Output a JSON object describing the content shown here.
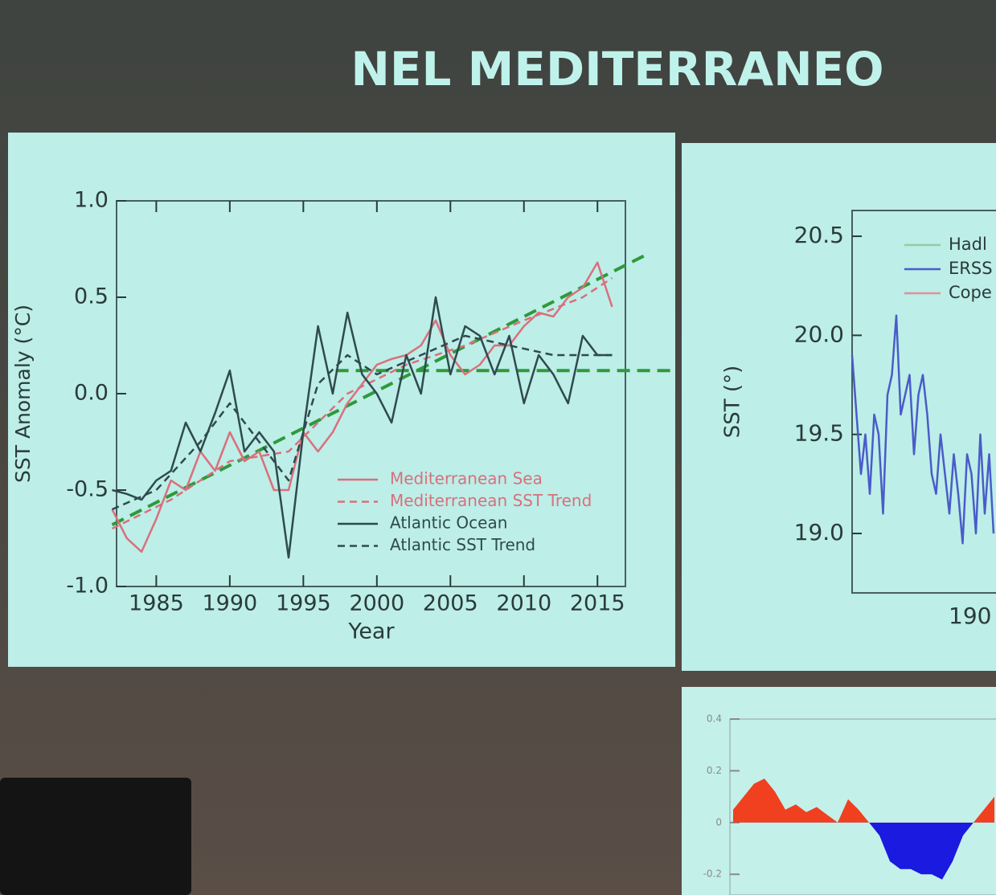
{
  "title": "NEL MEDITERRANEO",
  "chart_data": [
    {
      "type": "line",
      "ylabel": "SST Anomaly (°C)",
      "xlabel": "Year",
      "xlim": [
        1982.3,
        2016.9
      ],
      "ylim": [
        -1,
        1
      ],
      "xticks": [
        1985,
        1990,
        1995,
        2000,
        2005,
        2010,
        2015
      ],
      "yticks": [
        {
          "value": -1,
          "label": "-1.0"
        },
        -0.5,
        {
          "value": 0,
          "label": "0.0"
        },
        0.5,
        {
          "value": 1,
          "label": "1.0"
        }
      ],
      "series": [
        {
          "name": "Mediterranean Sea",
          "color": "#d9707c",
          "dash": false,
          "x": [
            1982,
            1983,
            1984,
            1985,
            1986,
            1987,
            1988,
            1989,
            1990,
            1991,
            1992,
            1993,
            1994,
            1995,
            1996,
            1997,
            1998,
            1999,
            2000,
            2001,
            2002,
            2003,
            2004,
            2005,
            2006,
            2007,
            2008,
            2009,
            2010,
            2011,
            2012,
            2013,
            2014,
            2015,
            2016
          ],
          "values": [
            -0.6,
            -0.75,
            -0.82,
            -0.65,
            -0.45,
            -0.5,
            -0.3,
            -0.4,
            -0.2,
            -0.35,
            -0.3,
            -0.5,
            -0.5,
            -0.2,
            -0.3,
            -0.2,
            -0.05,
            0.05,
            0.15,
            0.18,
            0.2,
            0.25,
            0.38,
            0.2,
            0.1,
            0.15,
            0.25,
            0.25,
            0.35,
            0.42,
            0.4,
            0.5,
            0.55,
            0.68,
            0.45
          ]
        },
        {
          "name": "Mediterranean SST Trend",
          "color": "#d9707c",
          "dash": true,
          "x": [
            1982,
            1986,
            1990,
            1994,
            1998,
            2002,
            2006,
            2010,
            2014,
            2016
          ],
          "values": [
            -0.7,
            -0.55,
            -0.35,
            -0.3,
            0.0,
            0.15,
            0.25,
            0.38,
            0.5,
            0.6
          ]
        },
        {
          "name": "Atlantic Ocean",
          "color": "#2f4a4e",
          "dash": false,
          "x": [
            1982,
            1983,
            1984,
            1985,
            1986,
            1987,
            1988,
            1989,
            1990,
            1991,
            1992,
            1993,
            1994,
            1995,
            1996,
            1997,
            1998,
            1999,
            2000,
            2001,
            2002,
            2003,
            2004,
            2005,
            2006,
            2007,
            2008,
            2009,
            2010,
            2011,
            2012,
            2013,
            2014,
            2015,
            2016
          ],
          "values": [
            -0.5,
            -0.52,
            -0.55,
            -0.45,
            -0.4,
            -0.15,
            -0.3,
            -0.1,
            0.12,
            -0.3,
            -0.2,
            -0.3,
            -0.85,
            -0.2,
            0.35,
            0.0,
            0.42,
            0.1,
            0.0,
            -0.15,
            0.2,
            0.0,
            0.5,
            0.1,
            0.35,
            0.3,
            0.1,
            0.3,
            -0.05,
            0.2,
            0.1,
            -0.05,
            0.3,
            0.2,
            0.2
          ]
        },
        {
          "name": "Atlantic SST Trend",
          "color": "#2f4a4e",
          "dash": true,
          "x": [
            1982,
            1985,
            1988,
            1990,
            1992,
            1994,
            1996,
            1998,
            2000,
            2003,
            2006,
            2009,
            2012,
            2016
          ],
          "values": [
            -0.6,
            -0.5,
            -0.25,
            -0.05,
            -0.25,
            -0.45,
            0.05,
            0.2,
            0.1,
            0.2,
            0.3,
            0.25,
            0.2,
            0.2
          ]
        }
      ],
      "trend_lines": [
        {
          "color": "#2e9a3a",
          "x": [
            1982,
            2018.3
          ],
          "values": [
            -0.68,
            0.72
          ]
        },
        {
          "color": "#2e9a3a",
          "x": [
            1997.2,
            2020
          ],
          "values": [
            0.12,
            0.12
          ]
        }
      ]
    },
    {
      "type": "line",
      "ylabel": "SST (°)",
      "x_tick_label": "190",
      "ylim": [
        18.7,
        20.63
      ],
      "yticks": [
        {
          "value": 19,
          "label": "19.0"
        },
        19.5,
        {
          "value": 20,
          "label": "20.0"
        },
        20.5
      ],
      "categories": [
        null,
        null,
        null,
        null,
        null,
        null,
        null,
        null,
        null,
        null,
        null,
        null,
        null,
        null,
        null,
        null,
        null,
        null,
        null,
        null,
        null,
        null,
        null,
        null,
        null,
        null,
        null,
        null,
        null,
        null,
        null,
        null,
        null
      ],
      "legend_names": [
        "Hadl",
        "ERSS",
        "Cope"
      ],
      "legend_colors": [
        "#8fd0a0",
        "#4a5cc8",
        "#e0909a"
      ],
      "series": [
        {
          "color": "#4a5cc8",
          "values": [
            19.9,
            19.6,
            19.3,
            19.5,
            19.2,
            19.6,
            19.5,
            19.1,
            19.7,
            19.8,
            20.1,
            19.6,
            19.7,
            19.8,
            19.4,
            19.7,
            19.8,
            19.6,
            19.3,
            19.2,
            19.5,
            19.3,
            19.1,
            19.4,
            19.2,
            18.95,
            19.4,
            19.3,
            19.0,
            19.5,
            19.1,
            19.4,
            19.0
          ]
        }
      ]
    },
    {
      "type": "area",
      "ylim": [
        -0.28,
        0.4
      ],
      "yticks": [
        -0.2,
        0,
        0.2,
        0.4
      ],
      "categories": [
        null,
        null,
        null,
        null,
        null,
        null,
        null,
        null,
        null,
        null,
        null,
        null,
        null,
        null,
        null,
        null,
        null,
        null,
        null,
        null,
        null,
        null,
        null,
        null,
        null,
        null
      ],
      "pos_color": "#f04020",
      "neg_color": "#1a1ae0",
      "values": [
        0.05,
        0.1,
        0.15,
        0.17,
        0.12,
        0.05,
        0.07,
        0.04,
        0.06,
        0.03,
        0.0,
        0.09,
        0.05,
        0.0,
        -0.05,
        -0.15,
        -0.18,
        -0.18,
        -0.2,
        -0.2,
        -0.22,
        -0.15,
        -0.05,
        0.0,
        0.05,
        0.1
      ]
    }
  ]
}
